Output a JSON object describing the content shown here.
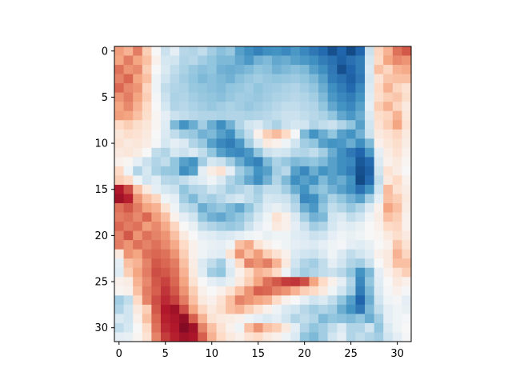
{
  "chart_data": {
    "type": "heatmap",
    "title": "",
    "xlabel": "",
    "ylabel": "",
    "rows": 32,
    "cols": 32,
    "x_ticks": [
      0,
      5,
      10,
      15,
      20,
      25,
      30
    ],
    "y_ticks": [
      0,
      5,
      10,
      15,
      20,
      25,
      30
    ],
    "x_tick_labels": [
      "0",
      "5",
      "10",
      "15",
      "20",
      "25",
      "30"
    ],
    "y_tick_labels": [
      "0",
      "5",
      "10",
      "15",
      "20",
      "25",
      "30"
    ],
    "xlim": [
      -0.5,
      31.5
    ],
    "ylim": [
      31.5,
      -0.5
    ],
    "colormap": "RdBu",
    "value_range": [
      -1,
      1
    ],
    "grid": false,
    "legend": "none",
    "values": [
      [
        0.42,
        0.35,
        0.52,
        0.25,
        0.0,
        -0.22,
        -0.1,
        -0.28,
        -0.3,
        -0.25,
        -0.35,
        -0.42,
        -0.38,
        -0.55,
        -0.62,
        -0.68,
        -0.62,
        -0.6,
        -0.65,
        -0.58,
        -0.65,
        -0.72,
        -0.78,
        -0.88,
        -0.8,
        -0.9,
        -0.8,
        -0.22,
        0.22,
        0.35,
        0.55,
        0.62
      ],
      [
        0.4,
        0.52,
        0.4,
        0.3,
        0.05,
        -0.18,
        -0.2,
        -0.3,
        -0.28,
        -0.35,
        -0.4,
        -0.45,
        -0.45,
        -0.52,
        -0.58,
        -0.48,
        -0.45,
        -0.52,
        -0.5,
        -0.55,
        -0.58,
        -0.62,
        -0.7,
        -0.75,
        -0.82,
        -0.75,
        -0.7,
        -0.18,
        0.2,
        0.4,
        0.48,
        0.45
      ],
      [
        0.55,
        0.45,
        0.48,
        0.25,
        0.0,
        -0.15,
        -0.25,
        -0.32,
        -0.38,
        -0.42,
        -0.4,
        -0.48,
        -0.5,
        -0.48,
        -0.45,
        -0.4,
        -0.42,
        -0.48,
        -0.45,
        -0.42,
        -0.45,
        -0.55,
        -0.62,
        -0.72,
        -0.88,
        -0.8,
        -0.7,
        -0.15,
        0.3,
        0.22,
        0.35,
        0.38
      ],
      [
        0.5,
        0.58,
        0.4,
        0.3,
        -0.05,
        -0.2,
        -0.28,
        -0.35,
        -0.4,
        -0.45,
        -0.42,
        -0.45,
        -0.48,
        -0.42,
        -0.38,
        -0.35,
        -0.38,
        -0.4,
        -0.38,
        -0.36,
        -0.4,
        -0.45,
        -0.55,
        -0.7,
        -0.75,
        -0.82,
        -0.72,
        -0.18,
        0.15,
        0.28,
        0.3,
        0.3
      ],
      [
        0.58,
        0.48,
        0.45,
        0.22,
        -0.05,
        -0.25,
        -0.3,
        -0.32,
        -0.38,
        -0.4,
        -0.42,
        -0.44,
        -0.4,
        -0.38,
        -0.35,
        -0.4,
        -0.36,
        -0.35,
        -0.32,
        -0.3,
        -0.35,
        -0.4,
        -0.5,
        -0.62,
        -0.7,
        -0.78,
        -0.65,
        -0.15,
        0.2,
        0.35,
        0.22,
        0.15
      ],
      [
        0.45,
        0.52,
        0.4,
        0.25,
        -0.02,
        -0.22,
        -0.32,
        -0.3,
        -0.35,
        -0.38,
        -0.4,
        -0.42,
        -0.38,
        -0.35,
        -0.36,
        -0.38,
        -0.35,
        -0.32,
        -0.3,
        -0.28,
        -0.3,
        -0.35,
        -0.45,
        -0.58,
        -0.65,
        -0.7,
        -0.6,
        -0.12,
        0.18,
        0.25,
        0.28,
        0.18
      ],
      [
        0.4,
        0.48,
        0.35,
        0.2,
        0.0,
        -0.18,
        -0.3,
        -0.28,
        -0.32,
        -0.35,
        -0.38,
        -0.35,
        -0.32,
        -0.35,
        -0.38,
        -0.35,
        -0.32,
        -0.28,
        -0.25,
        -0.25,
        -0.28,
        -0.3,
        -0.4,
        -0.52,
        -0.6,
        -0.65,
        -0.55,
        -0.1,
        0.25,
        0.35,
        0.22,
        0.1
      ],
      [
        0.42,
        0.4,
        0.3,
        0.18,
        0.02,
        -0.1,
        -0.22,
        -0.25,
        -0.28,
        -0.3,
        -0.3,
        -0.32,
        -0.3,
        -0.3,
        -0.32,
        -0.3,
        -0.28,
        -0.25,
        -0.22,
        -0.22,
        -0.25,
        -0.28,
        -0.32,
        -0.4,
        -0.52,
        -0.58,
        -0.5,
        -0.15,
        0.18,
        0.22,
        0.35,
        0.12
      ],
      [
        0.2,
        0.25,
        0.18,
        0.12,
        0.02,
        -0.12,
        -0.45,
        -0.6,
        -0.5,
        -0.35,
        -0.5,
        -0.62,
        -0.48,
        -0.3,
        -0.2,
        -0.15,
        -0.25,
        -0.32,
        -0.22,
        -0.18,
        -0.2,
        -0.3,
        -0.25,
        -0.22,
        -0.3,
        -0.4,
        -0.55,
        -0.2,
        0.15,
        0.25,
        0.4,
        0.15
      ],
      [
        0.12,
        0.18,
        0.15,
        0.1,
        0.0,
        -0.15,
        -0.25,
        -0.35,
        -0.38,
        -0.48,
        -0.45,
        -0.55,
        -0.62,
        -0.4,
        -0.25,
        0.05,
        0.25,
        0.32,
        0.2,
        -0.02,
        -0.45,
        -0.6,
        -0.5,
        -0.4,
        -0.55,
        -0.6,
        -0.48,
        -0.22,
        0.1,
        0.15,
        0.22,
        0.1
      ],
      [
        0.15,
        0.1,
        0.12,
        0.08,
        -0.02,
        -0.18,
        -0.1,
        -0.15,
        -0.3,
        -0.38,
        -0.55,
        -0.65,
        -0.7,
        -0.58,
        -0.35,
        -0.15,
        0.1,
        0.05,
        -0.05,
        -0.2,
        -0.35,
        -0.4,
        -0.55,
        -0.6,
        -0.58,
        -0.5,
        -0.62,
        -0.45,
        0.05,
        0.12,
        0.18,
        0.08
      ],
      [
        0.1,
        0.12,
        0.08,
        0.0,
        -0.25,
        -0.3,
        -0.18,
        -0.22,
        -0.15,
        -0.25,
        -0.4,
        -0.55,
        -0.62,
        -0.65,
        -0.58,
        -0.4,
        -0.22,
        -0.18,
        -0.2,
        -0.28,
        -0.3,
        -0.25,
        -0.35,
        -0.5,
        -0.62,
        -0.72,
        -0.8,
        -0.58,
        -0.1,
        0.08,
        0.15,
        0.05
      ],
      [
        0.05,
        0.02,
        -0.1,
        -0.22,
        -0.3,
        -0.25,
        -0.4,
        -0.55,
        -0.6,
        -0.35,
        -0.18,
        -0.22,
        -0.35,
        -0.5,
        -0.62,
        -0.68,
        -0.45,
        -0.32,
        -0.38,
        -0.45,
        -0.42,
        -0.4,
        -0.45,
        -0.55,
        -0.62,
        -0.65,
        -0.85,
        -0.78,
        -0.15,
        0.05,
        0.1,
        0.02
      ],
      [
        0.2,
        -0.05,
        -0.3,
        -0.18,
        -0.32,
        -0.38,
        -0.4,
        -0.62,
        -0.55,
        -0.1,
        0.08,
        0.15,
        -0.1,
        -0.35,
        -0.45,
        -0.6,
        -0.55,
        -0.35,
        -0.28,
        -0.55,
        -0.65,
        -0.5,
        -0.6,
        -0.55,
        -0.62,
        -0.7,
        -0.88,
        -0.82,
        -0.2,
        0.15,
        0.08,
        0.0
      ],
      [
        0.25,
        0.2,
        -0.05,
        -0.2,
        -0.12,
        -0.28,
        -0.3,
        -0.25,
        -0.18,
        -0.12,
        -0.05,
        -0.15,
        -0.3,
        -0.4,
        -0.52,
        -0.62,
        -0.48,
        -0.3,
        -0.45,
        -0.62,
        -0.55,
        -0.6,
        -0.45,
        -0.55,
        -0.5,
        -0.6,
        -0.9,
        -0.78,
        -0.25,
        0.1,
        0.2,
        0.05
      ],
      [
        0.8,
        0.65,
        0.3,
        0.1,
        -0.1,
        -0.18,
        -0.22,
        -0.4,
        -0.3,
        -0.28,
        -0.2,
        -0.25,
        -0.35,
        -0.3,
        -0.25,
        -0.35,
        -0.25,
        -0.25,
        -0.35,
        -0.5,
        -0.6,
        -0.45,
        -0.4,
        -0.48,
        -0.55,
        -0.62,
        -0.75,
        -0.6,
        -0.2,
        0.32,
        0.15,
        0.08
      ],
      [
        0.85,
        0.78,
        0.45,
        0.3,
        0.22,
        -0.05,
        -0.1,
        -0.35,
        -0.45,
        -0.3,
        -0.35,
        -0.28,
        -0.22,
        -0.18,
        -0.25,
        -0.32,
        -0.18,
        -0.2,
        -0.22,
        -0.35,
        -0.65,
        -0.62,
        -0.45,
        -0.32,
        -0.4,
        -0.48,
        -0.55,
        -0.35,
        -0.1,
        0.3,
        0.25,
        0.1
      ],
      [
        0.55,
        0.62,
        0.52,
        0.4,
        0.35,
        0.15,
        -0.05,
        -0.25,
        -0.3,
        -0.5,
        -0.42,
        -0.38,
        -0.45,
        -0.52,
        -0.4,
        -0.25,
        -0.12,
        -0.08,
        -0.15,
        -0.28,
        -0.5,
        -0.58,
        -0.4,
        -0.25,
        -0.3,
        -0.38,
        -0.3,
        -0.15,
        0.05,
        0.4,
        0.3,
        0.08
      ],
      [
        0.52,
        0.55,
        0.48,
        0.58,
        0.42,
        0.3,
        0.05,
        -0.1,
        -0.2,
        -0.4,
        -0.48,
        -0.52,
        -0.45,
        -0.4,
        -0.3,
        -0.18,
        -0.05,
        0.15,
        0.05,
        -0.15,
        -0.35,
        -0.48,
        -0.45,
        -0.2,
        -0.15,
        -0.25,
        -0.2,
        -0.05,
        0.08,
        0.3,
        0.25,
        0.05
      ],
      [
        0.58,
        0.52,
        0.55,
        0.42,
        0.48,
        0.38,
        0.22,
        0.0,
        -0.08,
        -0.25,
        -0.3,
        -0.35,
        -0.38,
        -0.35,
        -0.22,
        -0.1,
        -0.02,
        0.1,
        0.05,
        -0.1,
        -0.22,
        -0.35,
        -0.3,
        -0.18,
        -0.1,
        -0.12,
        -0.08,
        0.0,
        0.05,
        0.2,
        0.22,
        0.05
      ],
      [
        0.5,
        0.62,
        0.45,
        0.55,
        0.5,
        0.45,
        0.3,
        0.1,
        0.0,
        -0.1,
        -0.12,
        -0.18,
        -0.15,
        -0.1,
        -0.05,
        -0.02,
        -0.08,
        -0.05,
        -0.05,
        -0.12,
        -0.15,
        -0.22,
        -0.2,
        -0.1,
        -0.05,
        -0.08,
        -0.05,
        0.0,
        0.02,
        0.1,
        0.18,
        0.1
      ],
      [
        0.52,
        0.45,
        0.55,
        0.5,
        0.55,
        0.48,
        0.38,
        0.2,
        0.05,
        -0.05,
        -0.08,
        -0.1,
        -0.05,
        0.3,
        0.38,
        0.15,
        0.05,
        0.0,
        -0.05,
        -0.1,
        -0.12,
        -0.15,
        -0.1,
        -0.05,
        -0.02,
        -0.1,
        -0.12,
        -0.08,
        0.0,
        0.05,
        0.28,
        0.15
      ],
      [
        0.1,
        0.45,
        0.4,
        0.55,
        0.58,
        0.55,
        0.45,
        0.25,
        0.05,
        -0.05,
        -0.1,
        -0.12,
        0.15,
        0.45,
        0.3,
        0.42,
        0.25,
        0.15,
        0.05,
        -0.15,
        -0.2,
        -0.22,
        -0.15,
        -0.05,
        -0.15,
        -0.25,
        -0.2,
        -0.12,
        0.05,
        0.1,
        0.35,
        0.22
      ],
      [
        -0.1,
        0.3,
        0.35,
        0.5,
        0.62,
        0.58,
        0.52,
        0.3,
        0.08,
        -0.15,
        -0.25,
        -0.35,
        -0.1,
        0.2,
        0.5,
        0.45,
        0.52,
        0.35,
        0.1,
        -0.2,
        -0.3,
        -0.35,
        -0.25,
        -0.1,
        -0.2,
        -0.3,
        -0.35,
        -0.22,
        0.0,
        0.1,
        0.3,
        0.3
      ],
      [
        -0.12,
        0.25,
        0.4,
        0.52,
        0.65,
        0.62,
        0.55,
        0.35,
        0.1,
        -0.12,
        -0.35,
        -0.4,
        -0.15,
        0.05,
        0.2,
        0.35,
        0.3,
        0.2,
        -0.05,
        -0.25,
        -0.35,
        -0.3,
        -0.25,
        -0.22,
        -0.28,
        -0.4,
        -0.6,
        -0.45,
        -0.1,
        0.05,
        0.15,
        0.25
      ],
      [
        0.05,
        0.08,
        0.35,
        0.48,
        0.62,
        0.68,
        0.58,
        0.4,
        0.15,
        0.0,
        -0.1,
        -0.15,
        -0.08,
        0.1,
        0.25,
        0.4,
        0.55,
        0.62,
        0.7,
        0.72,
        0.65,
        0.4,
        0.2,
        0.05,
        -0.1,
        -0.3,
        -0.65,
        -0.4,
        -0.12,
        0.0,
        0.1,
        0.05
      ],
      [
        0.02,
        0.05,
        0.3,
        0.52,
        0.6,
        0.72,
        0.62,
        0.45,
        0.25,
        0.05,
        0.0,
        0.05,
        0.15,
        0.3,
        0.45,
        0.6,
        0.58,
        0.5,
        0.45,
        0.35,
        0.25,
        0.2,
        0.1,
        -0.05,
        -0.2,
        -0.35,
        -0.7,
        -0.45,
        -0.15,
        -0.02,
        0.05,
        -0.02
      ],
      [
        -0.35,
        -0.25,
        0.2,
        0.5,
        0.65,
        0.75,
        0.68,
        0.52,
        0.3,
        0.1,
        0.05,
        0.15,
        0.3,
        0.5,
        0.45,
        0.4,
        0.35,
        0.2,
        0.05,
        0.0,
        -0.1,
        -0.2,
        -0.15,
        -0.25,
        -0.4,
        -0.55,
        -0.8,
        -0.5,
        -0.2,
        -0.05,
        -0.02,
        -0.1
      ],
      [
        -0.3,
        -0.2,
        0.1,
        0.25,
        0.62,
        0.8,
        0.85,
        0.65,
        0.4,
        0.22,
        0.1,
        0.18,
        0.3,
        0.35,
        0.25,
        0.15,
        0.05,
        -0.05,
        -0.15,
        -0.2,
        -0.28,
        -0.35,
        -0.3,
        -0.35,
        -0.5,
        -0.6,
        -0.72,
        -0.45,
        -0.25,
        -0.1,
        -0.05,
        -0.08
      ],
      [
        -0.15,
        -0.2,
        0.05,
        0.3,
        0.58,
        0.78,
        0.82,
        0.88,
        0.6,
        0.35,
        0.15,
        0.1,
        0.08,
        0.05,
        -0.05,
        -0.1,
        -0.15,
        -0.1,
        -0.2,
        -0.3,
        -0.25,
        -0.3,
        -0.45,
        -0.4,
        -0.42,
        -0.45,
        -0.4,
        -0.5,
        -0.35,
        -0.1,
        -0.05,
        -0.02
      ],
      [
        -0.25,
        -0.18,
        0.0,
        0.2,
        0.55,
        0.75,
        0.8,
        0.92,
        0.85,
        0.5,
        0.3,
        0.15,
        0.05,
        -0.05,
        0.3,
        0.45,
        0.3,
        0.25,
        0.1,
        -0.1,
        -0.3,
        -0.4,
        -0.35,
        -0.25,
        -0.15,
        -0.3,
        -0.3,
        -0.2,
        -0.4,
        -0.15,
        -0.05,
        0.0
      ],
      [
        -0.1,
        -0.08,
        0.02,
        0.15,
        0.5,
        0.7,
        0.78,
        0.85,
        0.82,
        0.6,
        0.35,
        0.2,
        0.1,
        0.05,
        0.15,
        0.2,
        0.1,
        0.05,
        -0.05,
        -0.15,
        -0.4,
        -0.45,
        -0.35,
        -0.2,
        -0.1,
        -0.3,
        -0.25,
        -0.3,
        -0.35,
        -0.2,
        -0.1,
        -0.02
      ]
    ]
  }
}
